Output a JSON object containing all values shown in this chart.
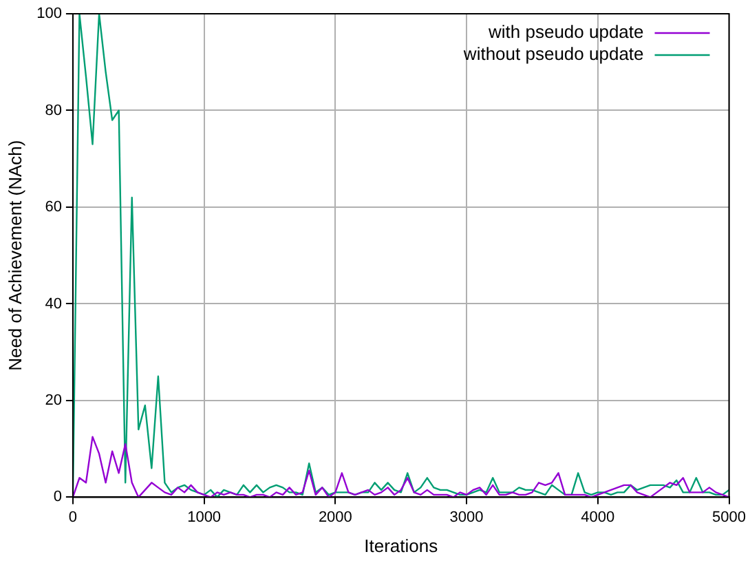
{
  "chart_data": {
    "type": "line",
    "xlabel": "Iterations",
    "ylabel": "Need of Achievement (NAch)",
    "x": [
      0,
      50,
      100,
      150,
      200,
      250,
      300,
      350,
      400,
      450,
      500,
      550,
      600,
      650,
      700,
      750,
      800,
      850,
      900,
      950,
      1000,
      1050,
      1100,
      1150,
      1200,
      1250,
      1300,
      1350,
      1400,
      1450,
      1500,
      1550,
      1600,
      1650,
      1700,
      1750,
      1800,
      1850,
      1900,
      1950,
      2000,
      2050,
      2100,
      2150,
      2200,
      2250,
      2300,
      2350,
      2400,
      2450,
      2500,
      2550,
      2600,
      2650,
      2700,
      2750,
      2800,
      2850,
      2900,
      2950,
      3000,
      3050,
      3100,
      3150,
      3200,
      3250,
      3300,
      3350,
      3400,
      3450,
      3500,
      3550,
      3600,
      3650,
      3700,
      3750,
      3800,
      3850,
      3900,
      3950,
      4000,
      4050,
      4100,
      4150,
      4200,
      4250,
      4300,
      4350,
      4400,
      4450,
      4500,
      4550,
      4600,
      4650,
      4700,
      4750,
      4800,
      4850,
      4900,
      4950,
      5000
    ],
    "series": [
      {
        "name": "with pseudo update",
        "color": "#9400d3",
        "values": [
          0,
          4,
          3,
          12.5,
          9,
          3,
          9.5,
          5,
          11,
          3,
          0,
          1.5,
          3,
          2,
          1,
          0.5,
          2,
          1,
          2.5,
          1,
          0.5,
          0,
          1,
          0.5,
          1,
          0.5,
          0.5,
          0,
          0.5,
          0.5,
          0,
          1,
          0.5,
          2,
          0.5,
          1,
          5.5,
          0.5,
          2,
          0,
          1,
          5,
          1,
          0.5,
          1,
          1.5,
          0.5,
          1,
          2,
          0.5,
          1.5,
          4,
          1,
          0.5,
          1.5,
          0.5,
          0.5,
          0.5,
          0,
          1,
          0.5,
          1.5,
          2,
          0.5,
          2.5,
          0.5,
          0.5,
          1,
          0.5,
          0.5,
          1,
          3,
          2.5,
          3,
          5,
          0.5,
          0.5,
          0.5,
          0.5,
          0,
          0.5,
          1,
          1.5,
          2,
          2.5,
          2.5,
          1,
          0.5,
          0,
          1,
          2,
          3,
          2.5,
          4,
          1,
          1,
          1,
          2,
          1,
          0.5,
          0
        ]
      },
      {
        "name": "without pseudo update",
        "color": "#009e73",
        "values": [
          0,
          100,
          87,
          73,
          100,
          88,
          78,
          80,
          3,
          62,
          14,
          19,
          6,
          25,
          3,
          1,
          2,
          2.5,
          1.5,
          1,
          0.5,
          1.5,
          0,
          1.5,
          1,
          0.5,
          2.5,
          1,
          2.5,
          1,
          2,
          2.5,
          2,
          1,
          1,
          0.5,
          7,
          1,
          2,
          0.5,
          1,
          1,
          1,
          0.5,
          1,
          1,
          3,
          1.5,
          3,
          1.5,
          1,
          5,
          1,
          2,
          4,
          2,
          1.5,
          1.5,
          1,
          0.5,
          0.5,
          1,
          1.5,
          1,
          4,
          1,
          1,
          1,
          2,
          1.5,
          1.5,
          1,
          0.5,
          2.5,
          1.5,
          0.5,
          0.5,
          5,
          1,
          0.5,
          1,
          1,
          0.5,
          1,
          1,
          2.5,
          1.5,
          2,
          2.5,
          2.5,
          2.5,
          2,
          3.5,
          1,
          1,
          4,
          1,
          1,
          0.5,
          0.5,
          1.5
        ]
      }
    ],
    "xlim": [
      0,
      5000
    ],
    "xticks": [
      0,
      1000,
      2000,
      3000,
      4000,
      5000
    ],
    "ylim": [
      0,
      100
    ],
    "yticks": [
      0,
      20,
      40,
      60,
      80,
      100
    ],
    "grid": true,
    "legend": "top right",
    "marker": "none",
    "line_style": "solid"
  }
}
